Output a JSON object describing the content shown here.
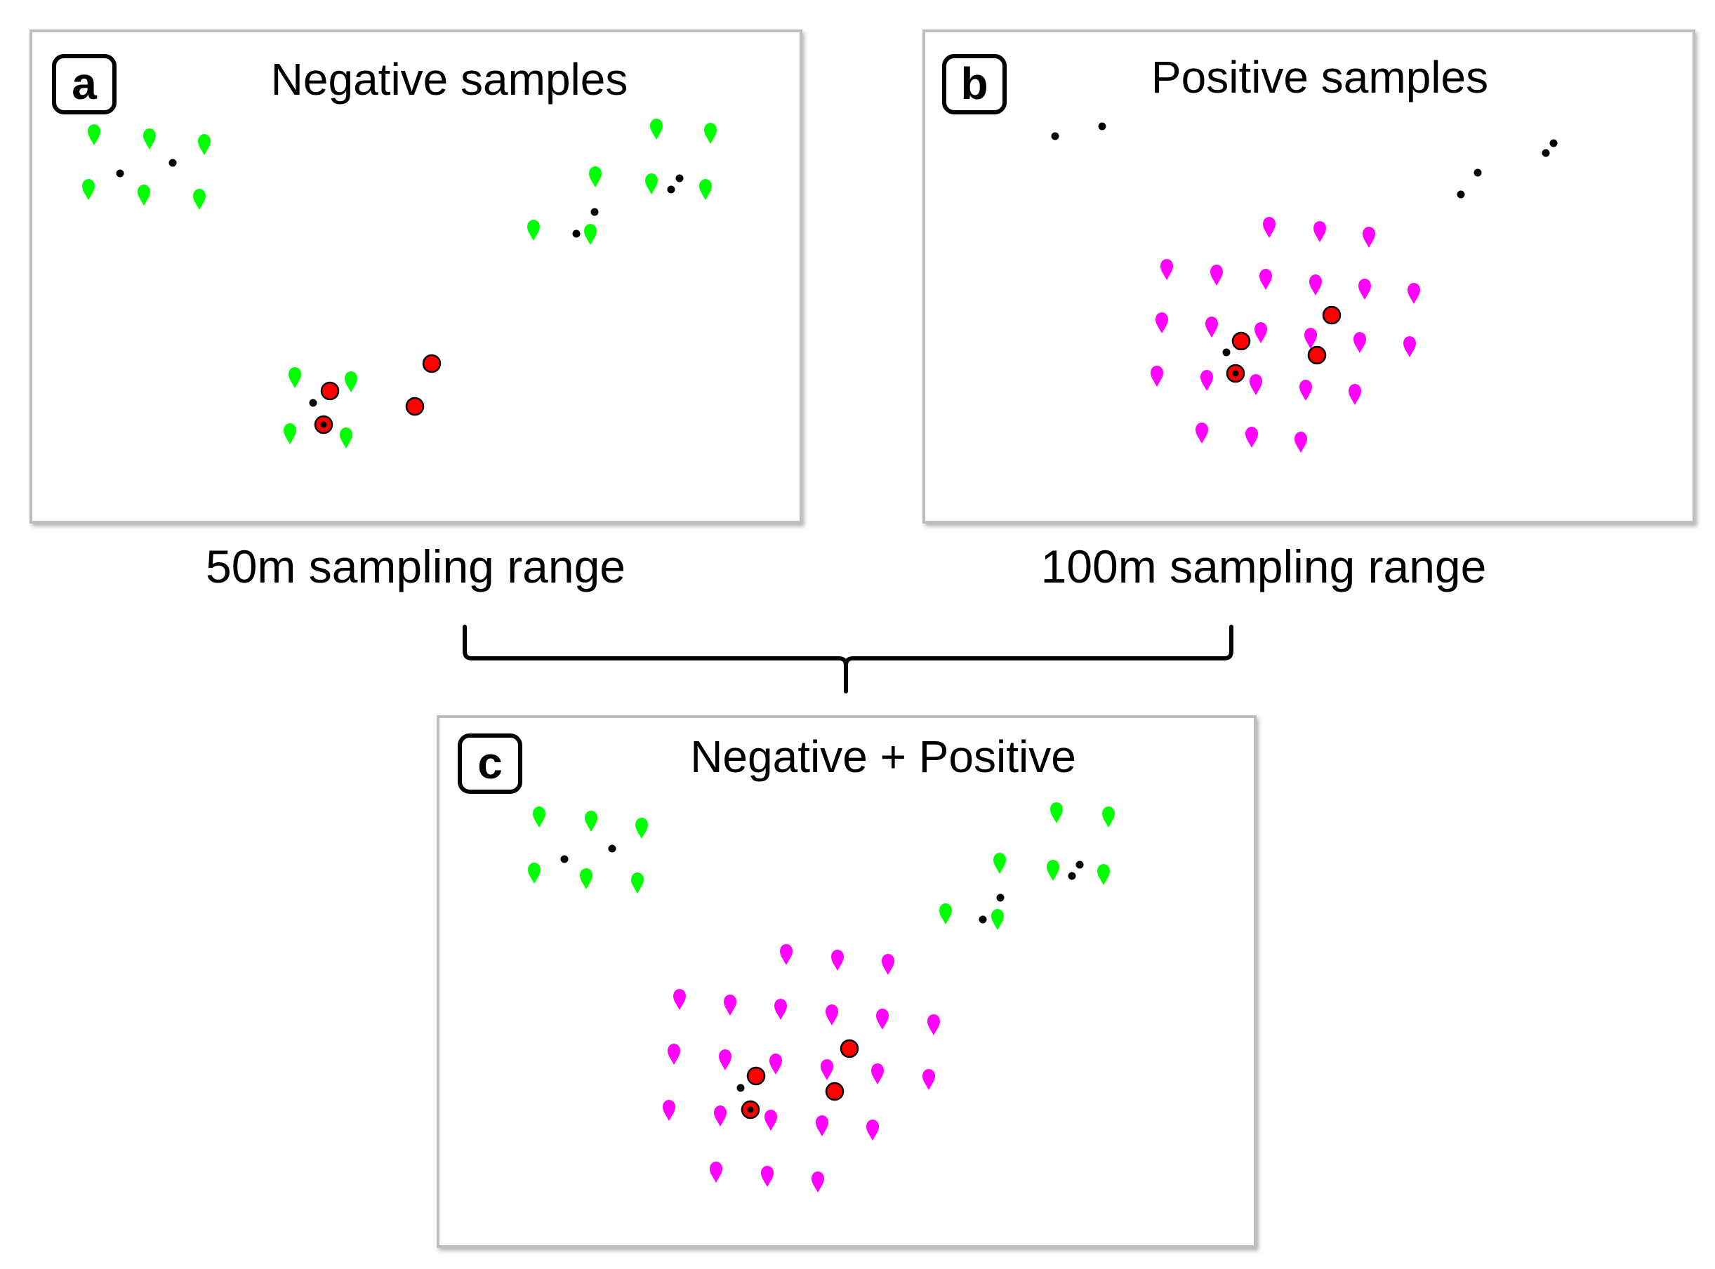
{
  "figure": {
    "colors": {
      "negative_marker": "#00ff00",
      "positive_marker": "#ff00ff",
      "target_point": "#ff0000",
      "small_dot": "#000000",
      "panel_border": "#c8c8c8"
    },
    "legend_semantics": {
      "green_marker": "negative sample",
      "magenta_marker": "positive sample",
      "red_circle": "observed point"
    },
    "panels": [
      {
        "id": "a",
        "letter": "a",
        "title": "Negative samples",
        "range_label": "50m sampling range"
      },
      {
        "id": "b",
        "letter": "b",
        "title": "Positive samples",
        "range_label": "100m sampling range"
      },
      {
        "id": "c",
        "letter": "c",
        "title": "Negative + Positive",
        "range_label": ""
      }
    ]
  }
}
